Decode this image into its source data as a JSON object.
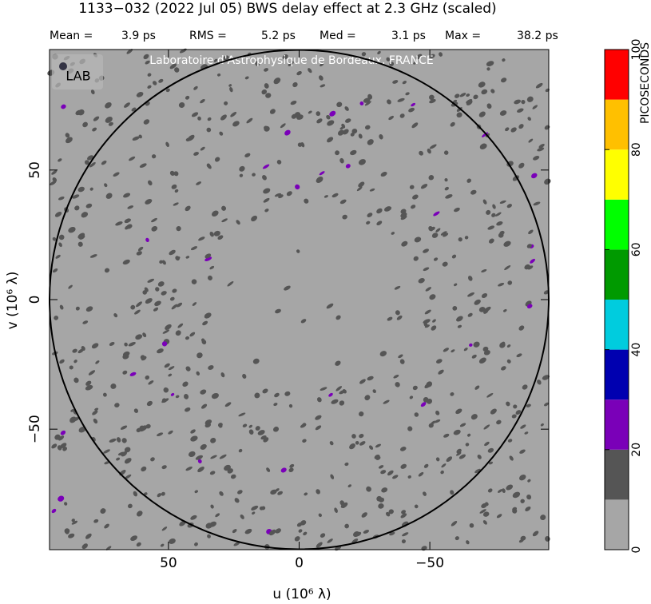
{
  "chart_data": {
    "type": "uvmap",
    "title": "1133−032  (2022 Jul 05)   BWS delay effect at  2.3 GHz (scaled)",
    "stats": [
      {
        "label": "Mean =",
        "value": "3.9 ps"
      },
      {
        "label": "RMS =",
        "value": "5.2 ps"
      },
      {
        "label": "Med =",
        "value": "3.1 ps"
      },
      {
        "label": "Max =",
        "value": "38.2 ps"
      }
    ],
    "watermark": "Laboratoire d'Astrophysique de Bordeaux, FRANCE",
    "logo": "LAB",
    "xlabel": "u  (10⁶ λ)",
    "ylabel": "v  (10⁶ λ)",
    "xlim": [
      95.5,
      -95.5
    ],
    "ylim": [
      -96.5,
      96.5
    ],
    "xticks": [
      50,
      0,
      {
        "value": -50,
        "label": "−50"
      }
    ],
    "yticks": [
      {
        "value": -50,
        "label": "−50"
      },
      0,
      50
    ],
    "circle_radius": 95.5,
    "colorbar": {
      "label": "PICOSECONDS",
      "levels": [
        0,
        10,
        20,
        30,
        40,
        50,
        60,
        70,
        80,
        90,
        100
      ],
      "colors": [
        "#a6a6a6",
        "#555555",
        "#7a00b8",
        "#0000b0",
        "#00ccde",
        "#009a00",
        "#00ff00",
        "#ffff00",
        "#ffc000",
        "#ff0000"
      ],
      "ticks": [
        0,
        20,
        40,
        60,
        80,
        100
      ]
    }
  }
}
